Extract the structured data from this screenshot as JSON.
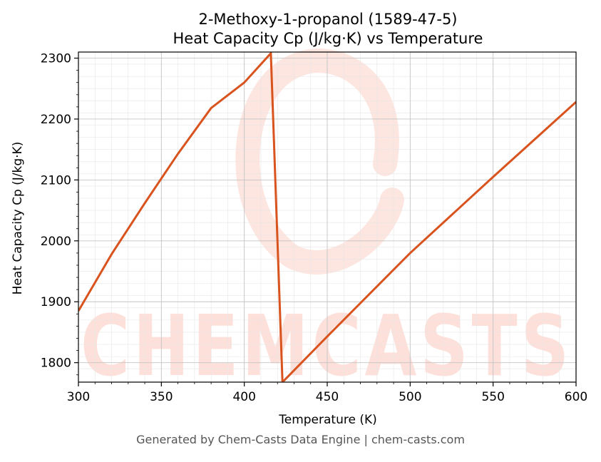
{
  "chart_data": {
    "type": "line",
    "title": "2-Methoxy-1-propanol (1589-47-5)",
    "subtitle": "Heat Capacity Cp (J/kg·K) vs Temperature",
    "xlabel": "Temperature (K)",
    "ylabel": "Heat Capacity Cp (J/kg·K)",
    "xlim": [
      300,
      600
    ],
    "ylim": [
      1768,
      2310
    ],
    "x_ticks": [
      300,
      350,
      400,
      450,
      500,
      550,
      600
    ],
    "y_ticks": [
      1800,
      1900,
      2000,
      2100,
      2200,
      2300
    ],
    "grid": true,
    "series": [
      {
        "color": "#d9531e",
        "points": [
          [
            300,
            1885
          ],
          [
            320,
            1978
          ],
          [
            340,
            2062
          ],
          [
            360,
            2143
          ],
          [
            380,
            2218
          ],
          [
            400,
            2260
          ],
          [
            416,
            2308
          ],
          [
            423,
            1768
          ],
          [
            450,
            1843
          ],
          [
            500,
            1980
          ],
          [
            550,
            2105
          ],
          [
            600,
            2228
          ]
        ]
      }
    ]
  },
  "watermark": {
    "text": "CHEMCASTS",
    "color": "#fde0da"
  },
  "footer": "Generated by Chem-Casts Data Engine | chem-casts.com"
}
